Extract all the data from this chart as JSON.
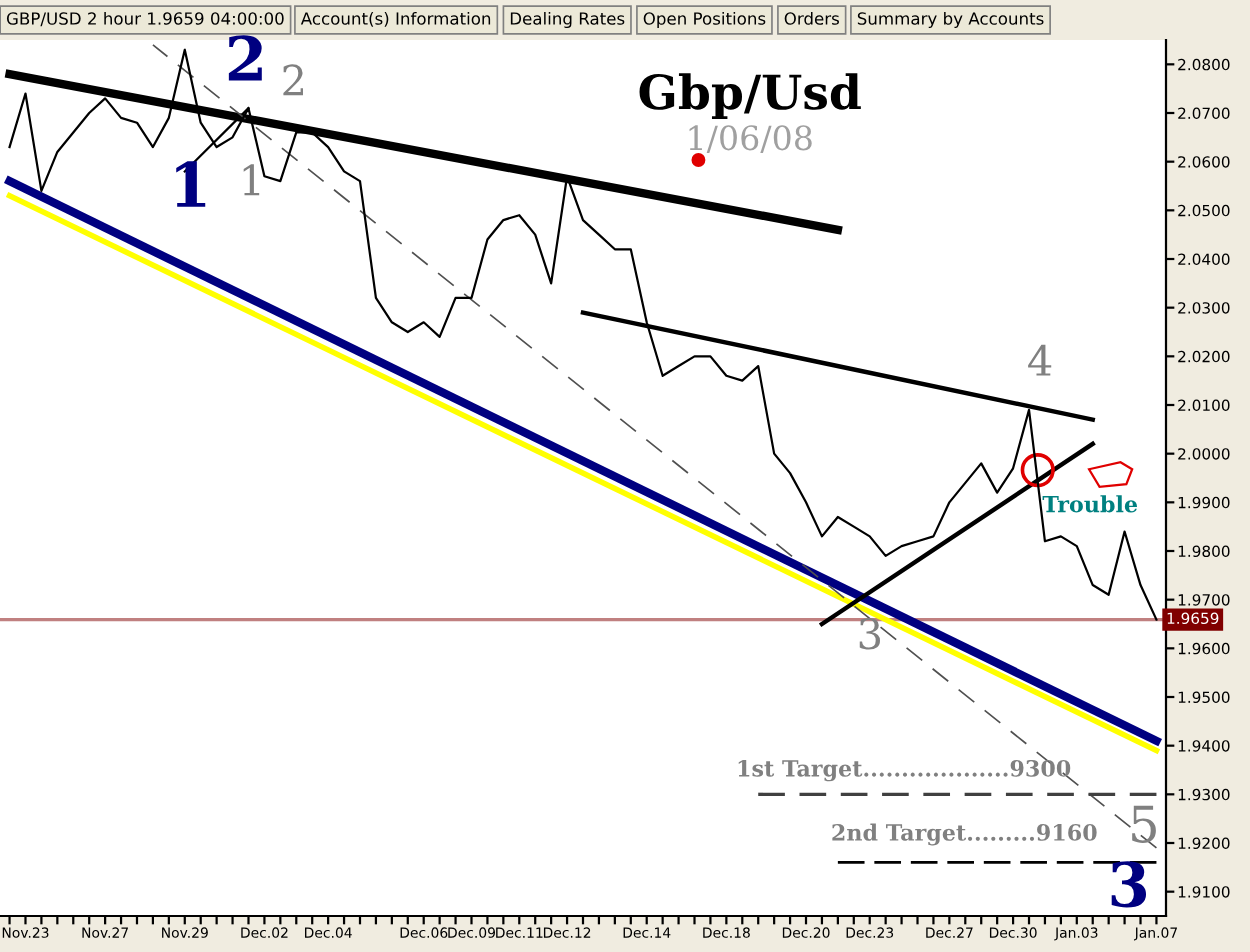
{
  "chart_data": {
    "type": "line",
    "title": "Gbp/Usd",
    "subtitle": "1/06/08",
    "categories": [
      null,
      "Nov.23",
      null,
      null,
      null,
      null,
      "Nov.27",
      null,
      null,
      null,
      null,
      "Nov.29",
      null,
      null,
      null,
      null,
      "Dec.02",
      null,
      null,
      null,
      "Dec.04",
      null,
      null,
      null,
      null,
      null,
      "Dec.06",
      null,
      null,
      "Dec.09",
      null,
      null,
      "Dec.11",
      null,
      null,
      "Dec.12",
      null,
      null,
      null,
      null,
      "Dec.14",
      null,
      null,
      null,
      null,
      "Dec.18",
      null,
      null,
      null,
      null,
      "Dec.20",
      null,
      null,
      null,
      "Dec.23",
      null,
      null,
      null,
      null,
      "Dec.27",
      null,
      null,
      null,
      "Dec.30",
      null,
      null,
      null,
      "Jan.03",
      null,
      null,
      null,
      null,
      "Jan.07"
    ],
    "ylim": [
      1.905,
      2.085
    ],
    "yticks": [
      {
        "value": 1.91,
        "label": "1.9100"
      },
      {
        "value": 1.92,
        "label": "1.9200"
      },
      {
        "value": 1.93,
        "label": "1.9300"
      },
      {
        "value": 1.94,
        "label": "1.9400"
      },
      {
        "value": 1.95,
        "label": "1.9500"
      },
      {
        "value": 1.96,
        "label": "1.9600"
      },
      {
        "value": 1.97,
        "label": "1.9700"
      },
      {
        "value": 1.98,
        "label": "1.9800"
      },
      {
        "value": 1.99,
        "label": "1.9900"
      },
      {
        "value": 2.0,
        "label": "2.0000"
      },
      {
        "value": 2.01,
        "label": "2.0100"
      },
      {
        "value": 2.02,
        "label": "2.0200"
      },
      {
        "value": 2.03,
        "label": "2.0300"
      },
      {
        "value": 2.04,
        "label": "2.0400"
      },
      {
        "value": 2.05,
        "label": "2.0500"
      },
      {
        "value": 2.06,
        "label": "2.0600"
      },
      {
        "value": 2.07,
        "label": "2.0700"
      },
      {
        "value": 2.08,
        "label": "2.0800"
      }
    ],
    "series": [
      {
        "color": "#000000",
        "values": [
          2.063,
          2.074,
          2.054,
          2.062,
          2.066,
          2.07,
          2.073,
          2.069,
          2.068,
          2.063,
          2.069,
          2.083,
          2.068,
          2.063,
          2.065,
          2.071,
          2.057,
          2.056,
          2.066,
          2.066,
          2.063,
          2.058,
          2.056,
          2.032,
          2.027,
          2.025,
          2.027,
          2.024,
          2.032,
          2.032,
          2.044,
          2.048,
          2.049,
          2.045,
          2.035,
          2.057,
          2.048,
          2.045,
          2.042,
          2.042,
          2.027,
          2.016,
          2.018,
          2.02,
          2.02,
          2.016,
          2.015,
          2.018,
          2.0,
          1.996,
          1.99,
          1.983,
          1.987,
          1.985,
          1.983,
          1.979,
          1.981,
          1.982,
          1.983,
          1.99,
          1.994,
          1.998,
          1.992,
          1.997,
          2.009,
          1.982,
          1.983,
          1.981,
          1.973,
          1.971,
          1.984,
          1.973,
          1.9659
        ]
      },
      {
        "color": "#000000",
        "values": [
          2.078,
          null,
          null,
          null,
          null,
          null,
          null,
          null,
          null,
          null,
          null,
          null,
          null,
          null,
          null,
          null,
          null,
          null,
          null,
          null,
          null,
          null,
          null,
          null,
          null,
          null,
          null,
          null,
          null,
          null,
          null,
          null,
          null,
          null,
          null,
          null,
          null,
          null,
          null,
          null,
          null,
          null,
          null,
          null,
          null,
          null,
          null,
          null,
          null,
          null,
          null,
          null,
          2.046,
          null,
          null,
          null,
          null,
          null,
          null,
          null,
          null,
          null,
          null,
          null,
          null,
          null,
          null,
          null,
          null,
          null,
          null,
          null,
          null
        ]
      },
      {
        "color": "#ffff00",
        "values": [
          2.053,
          null,
          null,
          null,
          null,
          null,
          null,
          null,
          null,
          null,
          null,
          null,
          null,
          null,
          null,
          null,
          null,
          null,
          null,
          null,
          null,
          null,
          null,
          null,
          null,
          null,
          null,
          null,
          null,
          null,
          null,
          null,
          null,
          null,
          null,
          null,
          null,
          null,
          null,
          null,
          null,
          null,
          null,
          null,
          null,
          null,
          null,
          null,
          null,
          null,
          null,
          null,
          null,
          null,
          null,
          null,
          null,
          null,
          null,
          null,
          null,
          null,
          null,
          null,
          null,
          null,
          null,
          null,
          null,
          null,
          null,
          null,
          1.939
        ]
      },
      {
        "color": "#000080",
        "values": [
          2.056,
          null,
          null,
          null,
          null,
          null,
          null,
          null,
          null,
          null,
          null,
          null,
          null,
          null,
          null,
          null,
          null,
          null,
          null,
          null,
          null,
          null,
          null,
          null,
          null,
          null,
          null,
          null,
          null,
          null,
          null,
          null,
          null,
          null,
          null,
          null,
          null,
          null,
          null,
          null,
          null,
          null,
          null,
          null,
          null,
          null,
          null,
          null,
          null,
          null,
          null,
          null,
          null,
          null,
          null,
          null,
          null,
          null,
          null,
          null,
          null,
          null,
          null,
          null,
          null,
          null,
          null,
          null,
          null,
          null,
          null,
          null,
          1.941
        ]
      },
      {
        "color": "#000000",
        "values": [
          null,
          null,
          null,
          null,
          null,
          null,
          null,
          null,
          null,
          null,
          null,
          null,
          null,
          null,
          null,
          null,
          null,
          null,
          null,
          null,
          null,
          null,
          null,
          null,
          null,
          null,
          null,
          null,
          null,
          null,
          null,
          null,
          null,
          null,
          null,
          null,
          2.029,
          null,
          null,
          null,
          null,
          null,
          null,
          null,
          null,
          null,
          null,
          null,
          null,
          null,
          null,
          null,
          null,
          null,
          null,
          null,
          null,
          null,
          null,
          null,
          null,
          null,
          null,
          null,
          null,
          null,
          null,
          null,
          2.007,
          null,
          null,
          null,
          null
        ]
      },
      {
        "color": "#000000",
        "values": [
          null,
          null,
          null,
          null,
          null,
          null,
          null,
          null,
          null,
          null,
          null,
          null,
          null,
          null,
          null,
          null,
          null,
          null,
          null,
          null,
          null,
          null,
          null,
          null,
          null,
          null,
          null,
          null,
          null,
          null,
          null,
          null,
          null,
          null,
          null,
          null,
          null,
          null,
          null,
          null,
          null,
          null,
          null,
          null,
          null,
          null,
          null,
          null,
          null,
          null,
          null,
          1.965,
          null,
          null,
          null,
          null,
          null,
          null,
          null,
          null,
          null,
          null,
          null,
          null,
          null,
          null,
          null,
          null,
          2.002,
          null,
          null,
          null,
          null
        ]
      },
      {
        "color": "#000000",
        "values": [
          null,
          null,
          null,
          null,
          null,
          null,
          null,
          null,
          null,
          null,
          null,
          2.058,
          null,
          null,
          null,
          2.071,
          null,
          null,
          null,
          null,
          null,
          null,
          null,
          null,
          null,
          null,
          null,
          null,
          null,
          null,
          null,
          null,
          null,
          null,
          null,
          null,
          null,
          null,
          null,
          null,
          null,
          null,
          null,
          null,
          null,
          null,
          null,
          null,
          null,
          null,
          null,
          null,
          null,
          null,
          null,
          null,
          null,
          null,
          null,
          null,
          null,
          null,
          null,
          null,
          null,
          null,
          null,
          null,
          null,
          null,
          null,
          null,
          null
        ]
      },
      {
        "color": "#505050",
        "line_style": "dashed",
        "values": [
          null,
          null,
          null,
          null,
          null,
          null,
          null,
          null,
          null,
          2.084,
          null,
          null,
          null,
          null,
          null,
          null,
          null,
          null,
          null,
          null,
          null,
          null,
          null,
          null,
          null,
          null,
          null,
          null,
          null,
          null,
          null,
          null,
          null,
          null,
          null,
          null,
          null,
          null,
          null,
          null,
          null,
          null,
          null,
          null,
          null,
          null,
          null,
          null,
          null,
          null,
          null,
          null,
          null,
          null,
          null,
          null,
          null,
          null,
          null,
          null,
          null,
          null,
          null,
          null,
          null,
          null,
          null,
          null,
          null,
          null,
          null,
          null,
          1.919
        ]
      },
      {
        "color": "#404040",
        "line_style": "dashed",
        "values": [
          null,
          null,
          null,
          null,
          null,
          null,
          null,
          null,
          null,
          null,
          null,
          null,
          null,
          null,
          null,
          null,
          null,
          null,
          null,
          null,
          null,
          null,
          null,
          null,
          null,
          null,
          null,
          null,
          null,
          null,
          null,
          null,
          null,
          null,
          null,
          null,
          null,
          null,
          null,
          null,
          null,
          null,
          null,
          null,
          null,
          null,
          null,
          1.93,
          null,
          null,
          null,
          null,
          null,
          null,
          null,
          null,
          null,
          null,
          null,
          null,
          null,
          null,
          null,
          null,
          null,
          null,
          null,
          null,
          null,
          null,
          null,
          null,
          1.93
        ]
      },
      {
        "color": "#000000",
        "line_style": "dashed",
        "values": [
          null,
          null,
          null,
          null,
          null,
          null,
          null,
          null,
          null,
          null,
          null,
          null,
          null,
          null,
          null,
          null,
          null,
          null,
          null,
          null,
          null,
          null,
          null,
          null,
          null,
          null,
          null,
          null,
          null,
          null,
          null,
          null,
          null,
          null,
          null,
          null,
          null,
          null,
          null,
          null,
          null,
          null,
          null,
          null,
          null,
          null,
          null,
          null,
          null,
          null,
          null,
          null,
          1.916,
          null,
          null,
          null,
          null,
          null,
          null,
          null,
          null,
          null,
          null,
          null,
          null,
          null,
          null,
          null,
          null,
          null,
          null,
          null,
          1.916
        ]
      }
    ],
    "ref_lines": [
      {
        "axis": "y",
        "value": 1.9659,
        "label": "1.9659",
        "color": "#c08080"
      }
    ],
    "annotations": [
      "1",
      "2",
      "2",
      "1",
      "3",
      "4",
      "5",
      "3",
      "Trouble",
      "1st Target...................9300",
      "2nd Target.........9160",
      "GBP/USD 2 hour 1.9659 04:00:00",
      "Account(s) Information",
      "Dealing Rates",
      "Open Positions",
      "Orders",
      "Summary by Accounts"
    ],
    "grid": false,
    "legend": false
  }
}
